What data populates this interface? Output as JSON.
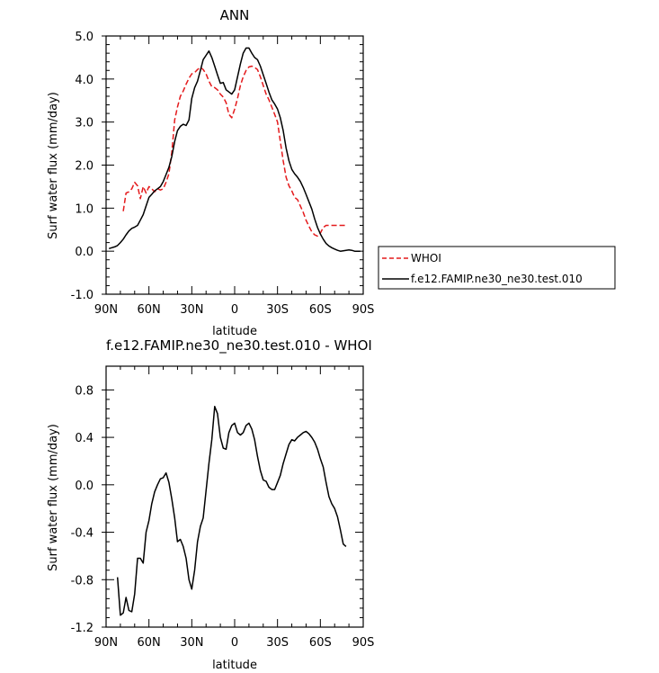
{
  "chart_data": [
    {
      "type": "line",
      "title": "ANN",
      "xlabel": "latitude",
      "ylabel": "Surf water flux (mm/day)",
      "xlim": [
        90,
        -90
      ],
      "ylim": [
        -1.0,
        5.0
      ],
      "x_ticks": [
        90,
        60,
        30,
        0,
        -30,
        -60,
        -90
      ],
      "x_tick_labels": [
        "90N",
        "60N",
        "30N",
        "0",
        "30S",
        "60S",
        "90S"
      ],
      "y_ticks": [
        -1.0,
        0.0,
        1.0,
        2.0,
        3.0,
        4.0,
        5.0
      ],
      "y_tick_labels": [
        "-1.0",
        "0.0",
        "1.0",
        "2.0",
        "3.0",
        "4.0",
        "5.0"
      ],
      "grid": false,
      "legend_position": "outside-right",
      "series": [
        {
          "name": "WHOI",
          "color": "#e41a1c",
          "dash": "dashed",
          "x": [
            78,
            76,
            74,
            72,
            70,
            68,
            66,
            64,
            62,
            60,
            58,
            56,
            54,
            52,
            50,
            48,
            46,
            44,
            42,
            40,
            38,
            36,
            34,
            32,
            30,
            28,
            26,
            24,
            22,
            20,
            18,
            16,
            14,
            12,
            10,
            8,
            6,
            4,
            2,
            0,
            -2,
            -4,
            -6,
            -8,
            -10,
            -12,
            -14,
            -16,
            -18,
            -20,
            -22,
            -24,
            -26,
            -28,
            -30,
            -32,
            -34,
            -36,
            -38,
            -40,
            -42,
            -44,
            -46,
            -48,
            -50,
            -52,
            -54,
            -56,
            -58,
            -60,
            -62,
            -64,
            -66,
            -68,
            -70,
            -72,
            -74,
            -76,
            -78
          ],
          "y": [
            0.93,
            1.35,
            1.38,
            1.45,
            1.6,
            1.52,
            1.22,
            1.5,
            1.35,
            1.5,
            1.45,
            1.38,
            1.45,
            1.42,
            1.45,
            1.6,
            1.8,
            2.3,
            3.05,
            3.35,
            3.6,
            3.72,
            3.88,
            4.02,
            4.12,
            4.15,
            4.22,
            4.27,
            4.22,
            4.12,
            3.95,
            3.82,
            3.8,
            3.75,
            3.65,
            3.58,
            3.45,
            3.18,
            3.1,
            3.3,
            3.55,
            3.85,
            4.05,
            4.2,
            4.28,
            4.3,
            4.27,
            4.22,
            4.05,
            3.85,
            3.65,
            3.52,
            3.35,
            3.18,
            3.0,
            2.55,
            2.1,
            1.72,
            1.52,
            1.4,
            1.25,
            1.2,
            1.05,
            0.9,
            0.72,
            0.58,
            0.45,
            0.38,
            0.35,
            0.42,
            0.55,
            0.6,
            0.6,
            0.6,
            0.6,
            0.6,
            0.6,
            0.6,
            0.6
          ]
        },
        {
          "name": "f.e12.FAMIP.ne30_ne30.test.010",
          "color": "#000000",
          "dash": "solid",
          "x": [
            88,
            86,
            84,
            82,
            80,
            78,
            76,
            74,
            72,
            70,
            68,
            66,
            64,
            62,
            60,
            58,
            56,
            54,
            52,
            50,
            48,
            46,
            44,
            42,
            40,
            38,
            36,
            34,
            32,
            30,
            28,
            26,
            24,
            22,
            20,
            18,
            16,
            14,
            12,
            10,
            8,
            6,
            4,
            2,
            0,
            -2,
            -4,
            -6,
            -8,
            -10,
            -12,
            -14,
            -16,
            -18,
            -20,
            -22,
            -24,
            -26,
            -28,
            -30,
            -32,
            -34,
            -36,
            -38,
            -40,
            -42,
            -44,
            -46,
            -48,
            -50,
            -52,
            -54,
            -56,
            -58,
            -60,
            -62,
            -64,
            -66,
            -68,
            -70,
            -72,
            -74,
            -76,
            -78,
            -80,
            -82,
            -84,
            -86,
            -88
          ],
          "y": [
            0.06,
            0.08,
            0.1,
            0.13,
            0.2,
            0.28,
            0.38,
            0.47,
            0.53,
            0.56,
            0.6,
            0.72,
            0.85,
            1.05,
            1.25,
            1.32,
            1.4,
            1.45,
            1.5,
            1.62,
            1.78,
            1.95,
            2.2,
            2.55,
            2.8,
            2.9,
            2.95,
            2.92,
            3.05,
            3.55,
            3.8,
            3.95,
            4.2,
            4.45,
            4.55,
            4.65,
            4.5,
            4.3,
            4.1,
            3.9,
            3.92,
            3.75,
            3.7,
            3.65,
            3.75,
            4.05,
            4.35,
            4.6,
            4.72,
            4.72,
            4.6,
            4.5,
            4.45,
            4.3,
            4.1,
            3.9,
            3.7,
            3.52,
            3.42,
            3.3,
            3.1,
            2.8,
            2.4,
            2.1,
            1.9,
            1.8,
            1.72,
            1.62,
            1.48,
            1.32,
            1.15,
            0.98,
            0.75,
            0.55,
            0.4,
            0.28,
            0.18,
            0.12,
            0.08,
            0.05,
            0.02,
            0.0,
            0.01,
            0.02,
            0.03,
            0.02,
            0.0,
            0.0,
            0.0
          ]
        }
      ]
    },
    {
      "type": "line",
      "title": "f.e12.FAMIP.ne30_ne30.test.010 - WHOI",
      "xlabel": "latitude",
      "ylabel": "Surf water flux (mm/day)",
      "xlim": [
        90,
        -90
      ],
      "ylim": [
        -1.2,
        1.0
      ],
      "x_ticks": [
        90,
        60,
        30,
        0,
        -30,
        -60,
        -90
      ],
      "x_tick_labels": [
        "90N",
        "60N",
        "30N",
        "0",
        "30S",
        "60S",
        "90S"
      ],
      "y_ticks": [
        -1.2,
        -0.8,
        -0.4,
        0.0,
        0.4,
        0.8
      ],
      "y_tick_labels": [
        "-1.2",
        "-0.8",
        "-0.4",
        "0.0",
        "0.4",
        "0.8"
      ],
      "grid": false,
      "series": [
        {
          "color": "#000000",
          "dash": "solid",
          "x": [
            82,
            80,
            78,
            76,
            74,
            72,
            70,
            68,
            66,
            64,
            62,
            60,
            58,
            56,
            54,
            52,
            50,
            48,
            46,
            44,
            42,
            40,
            38,
            36,
            34,
            32,
            30,
            28,
            26,
            24,
            22,
            20,
            18,
            16,
            14,
            12,
            10,
            8,
            6,
            4,
            2,
            0,
            -2,
            -4,
            -6,
            -8,
            -10,
            -12,
            -14,
            -16,
            -18,
            -20,
            -22,
            -24,
            -26,
            -28,
            -30,
            -32,
            -34,
            -36,
            -38,
            -40,
            -42,
            -44,
            -46,
            -48,
            -50,
            -52,
            -54,
            -56,
            -58,
            -60,
            -62,
            -64,
            -66,
            -68,
            -70,
            -72,
            -74,
            -76,
            -78
          ],
          "y": [
            -0.78,
            -1.1,
            -1.08,
            -0.95,
            -1.06,
            -1.07,
            -0.92,
            -0.62,
            -0.62,
            -0.66,
            -0.4,
            -0.3,
            -0.16,
            -0.06,
            0.0,
            0.05,
            0.06,
            0.1,
            0.02,
            -0.12,
            -0.28,
            -0.48,
            -0.46,
            -0.52,
            -0.62,
            -0.8,
            -0.88,
            -0.72,
            -0.48,
            -0.35,
            -0.28,
            -0.05,
            0.18,
            0.38,
            0.66,
            0.6,
            0.4,
            0.31,
            0.3,
            0.44,
            0.5,
            0.52,
            0.44,
            0.42,
            0.44,
            0.5,
            0.52,
            0.47,
            0.38,
            0.24,
            0.12,
            0.04,
            0.03,
            -0.02,
            -0.04,
            -0.04,
            0.02,
            0.08,
            0.18,
            0.26,
            0.34,
            0.38,
            0.37,
            0.4,
            0.42,
            0.44,
            0.45,
            0.43,
            0.4,
            0.36,
            0.3,
            0.22,
            0.15,
            0.02,
            -0.1,
            -0.16,
            -0.2,
            -0.27,
            -0.38,
            -0.5,
            -0.52
          ]
        }
      ]
    }
  ]
}
